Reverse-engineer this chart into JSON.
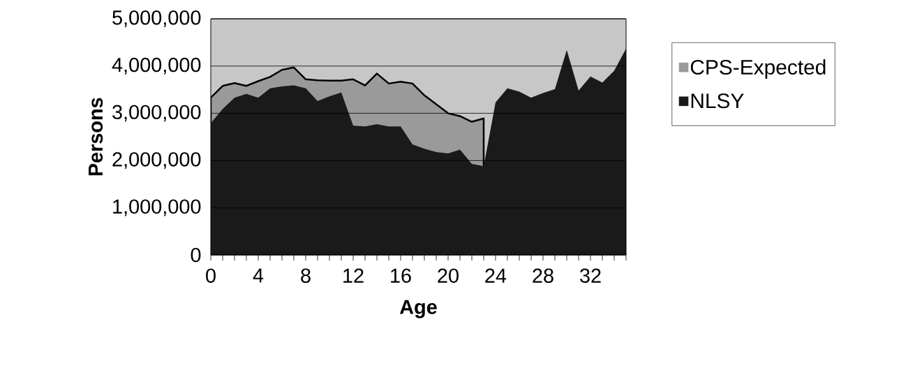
{
  "chart_data": {
    "type": "area",
    "xlabel": "Age",
    "ylabel": "Persons",
    "categories": [
      "0",
      null,
      null,
      null,
      "4",
      null,
      null,
      null,
      "8",
      null,
      null,
      null,
      "12",
      null,
      null,
      null,
      "16",
      null,
      null,
      null,
      "20",
      null,
      null,
      null,
      "24",
      null,
      null,
      null,
      "28",
      null,
      null,
      null,
      "32",
      null,
      null,
      null
    ],
    "series": [
      {
        "name": "CPS-Expected",
        "color": "#9a9a9a",
        "values": [
          3330000,
          3580000,
          3640000,
          3580000,
          3680000,
          3770000,
          3920000,
          3970000,
          3720000,
          3700000,
          3690000,
          3690000,
          3720000,
          3590000,
          3840000,
          3630000,
          3670000,
          3630000,
          3380000,
          3190000,
          3000000,
          2940000,
          2820000,
          2890000,
          null,
          null,
          null,
          null,
          null,
          null,
          null,
          null,
          null,
          null,
          null,
          null
        ]
      },
      {
        "name": "NLSY",
        "color": "#1a1a1a",
        "values": [
          2790000,
          3090000,
          3330000,
          3410000,
          3330000,
          3530000,
          3570000,
          3590000,
          3530000,
          3260000,
          3360000,
          3440000,
          2740000,
          2720000,
          2770000,
          2720000,
          2720000,
          2340000,
          2250000,
          2180000,
          2150000,
          2230000,
          1930000,
          1880000,
          3230000,
          3530000,
          3460000,
          3330000,
          3430000,
          3510000,
          4340000,
          3480000,
          3780000,
          3650000,
          3900000,
          4370000
        ]
      }
    ],
    "ylim": [
      0,
      5000000
    ],
    "yticks": [
      {
        "value": 0,
        "label": "0"
      },
      {
        "value": 1000000,
        "label": "1,000,000"
      },
      {
        "value": 2000000,
        "label": "2,000,000"
      },
      {
        "value": 3000000,
        "label": "3,000,000"
      },
      {
        "value": 4000000,
        "label": "4,000,000"
      },
      {
        "value": 5000000,
        "label": "5,000,000"
      }
    ],
    "grid": "y",
    "legend": "right"
  }
}
